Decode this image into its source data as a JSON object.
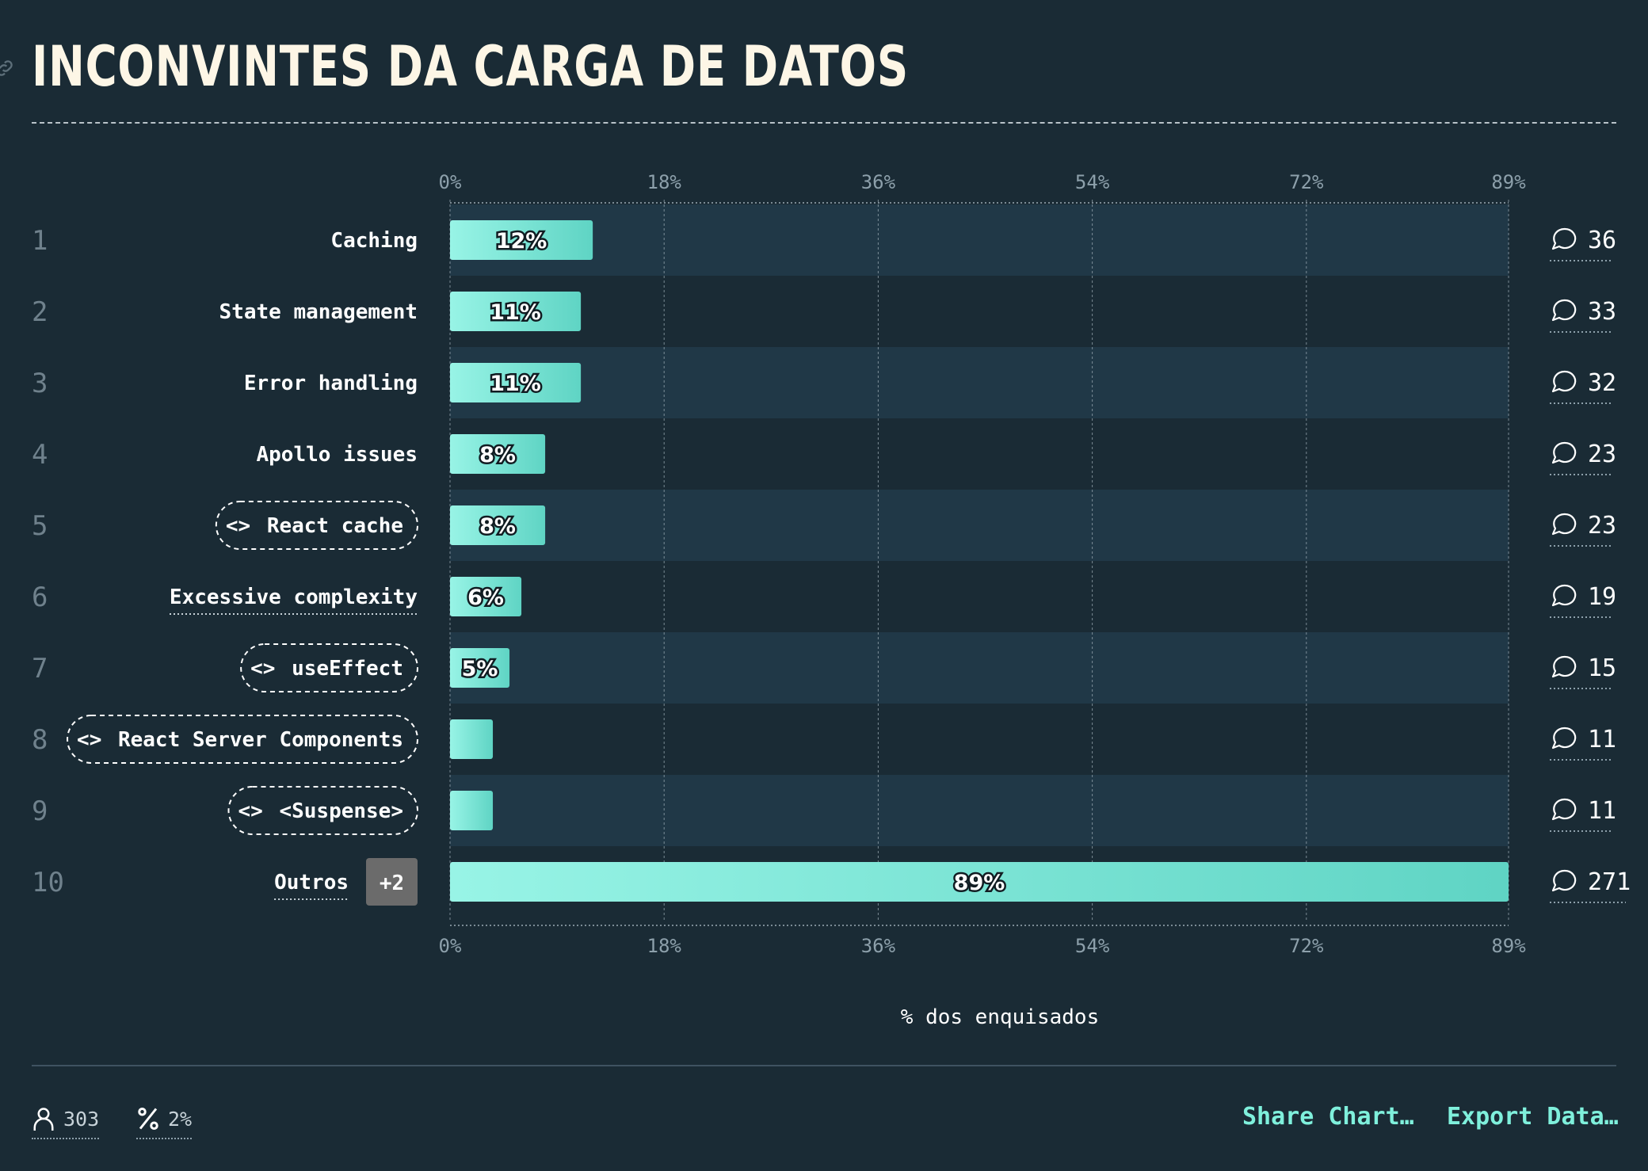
{
  "title": "INCONVINTES DA CARGA DE DATOS",
  "footer": {
    "respondents": "303",
    "percentage": "2%",
    "share_label": "Share Chart…",
    "export_label": "Export Data…"
  },
  "colors": {
    "background": "#1a2b35",
    "band": "#203847",
    "bar_start": "#98f4e6",
    "bar_end": "#5fd4c4",
    "accent": "#7ff0dc"
  },
  "chart_data": {
    "type": "bar",
    "orientation": "horizontal",
    "xlabel": "% dos enquisados",
    "xlim": [
      0,
      89
    ],
    "x_ticks": [
      "0%",
      "18%",
      "36%",
      "54%",
      "72%",
      "89%"
    ],
    "grid": true,
    "categories": [
      {
        "rank": "1",
        "label": "Caching",
        "value": 12,
        "value_label": "12%",
        "count": "36",
        "style": "plain"
      },
      {
        "rank": "2",
        "label": "State management",
        "value": 11,
        "value_label": "11%",
        "count": "33",
        "style": "plain"
      },
      {
        "rank": "3",
        "label": "Error handling",
        "value": 11,
        "value_label": "11%",
        "count": "32",
        "style": "plain"
      },
      {
        "rank": "4",
        "label": "Apollo issues",
        "value": 8,
        "value_label": "8%",
        "count": "23",
        "style": "plain"
      },
      {
        "rank": "5",
        "label": "React cache",
        "value": 8,
        "value_label": "8%",
        "count": "23",
        "style": "code"
      },
      {
        "rank": "6",
        "label": "Excessive complexity",
        "value": 6,
        "value_label": "6%",
        "count": "19",
        "style": "underlined"
      },
      {
        "rank": "7",
        "label": "useEffect",
        "value": 5,
        "value_label": "5%",
        "count": "15",
        "style": "code"
      },
      {
        "rank": "8",
        "label": "React Server Components",
        "value": 3.6,
        "value_label": "",
        "count": "11",
        "style": "code"
      },
      {
        "rank": "9",
        "label": "<Suspense>",
        "value": 3.6,
        "value_label": "",
        "count": "11",
        "style": "code"
      },
      {
        "rank": "10",
        "label": "Outros",
        "value": 89,
        "value_label": "89%",
        "count": "271",
        "style": "underlined",
        "extra": "+2"
      }
    ]
  }
}
